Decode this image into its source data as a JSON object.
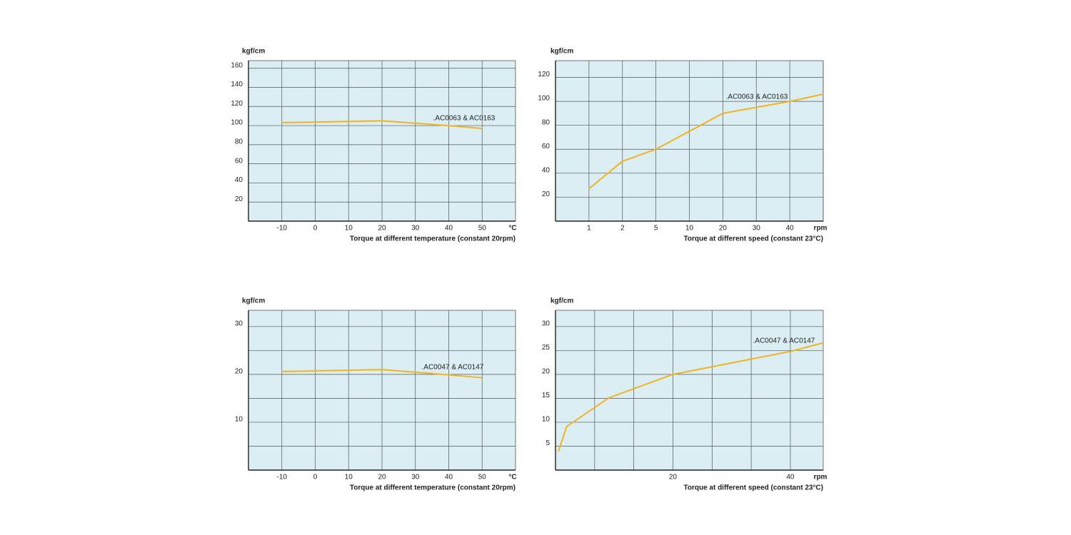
{
  "chart_data": [
    {
      "type": "line",
      "title": "Torque at different temperature (constant 20rpm)",
      "y_label": "kgf/cm",
      "x_label": "°C",
      "xlim": [
        -20,
        60
      ],
      "xticks": [
        -10,
        0,
        10,
        20,
        30,
        40,
        50
      ],
      "ylim": [
        0,
        168
      ],
      "yticks": [
        20,
        40,
        60,
        80,
        100,
        120,
        140,
        160
      ],
      "series": [
        {
          "name": ".AC0063 & AC0163",
          "color": "#f0b323",
          "x": [
            -10,
            20,
            40,
            50
          ],
          "values": [
            103,
            105,
            100,
            97
          ]
        }
      ],
      "background": "#dbeef3",
      "grid": true
    },
    {
      "type": "line",
      "title": "Torque at different speed (constant 23°C)",
      "y_label": "kgf/cm",
      "x_label": "rpm",
      "categories": [
        "1",
        "2",
        "5",
        "10",
        "20",
        "30",
        "40",
        null
      ],
      "ylim": [
        0,
        134
      ],
      "yticks": [
        20,
        40,
        60,
        80,
        100,
        120
      ],
      "series": [
        {
          "name": ".AC0063 & AC0163",
          "color": "#f0b323",
          "values": [
            27,
            50,
            60,
            75,
            90,
            95,
            100,
            106
          ]
        }
      ],
      "background": "#dbeef3",
      "grid": true
    },
    {
      "type": "line",
      "title": "Torque at different temperature (constant 20rpm)",
      "y_label": "kgf/cm",
      "x_label": "°C",
      "xlim": [
        -20,
        60
      ],
      "xticks": [
        -10,
        0,
        10,
        20,
        30,
        40,
        50
      ],
      "ylim": [
        0,
        33.4
      ],
      "yticks": [
        10,
        20,
        30
      ],
      "ygrid": [
        5,
        10,
        15,
        20,
        25,
        30
      ],
      "series": [
        {
          "name": ".AC0047 & AC0147",
          "color": "#f0b323",
          "x": [
            -10,
            20,
            40,
            50
          ],
          "values": [
            20.6,
            21,
            19.9,
            19.3
          ]
        }
      ],
      "background": "#dbeef3",
      "grid": true
    },
    {
      "type": "line",
      "title": "Torque at different speed (constant 23°C)",
      "y_label": "kgf/cm",
      "x_label": "rpm",
      "xlim": [
        0,
        45.6
      ],
      "xticks": [
        20,
        40
      ],
      "xgrid": [
        6.67,
        13.33,
        20,
        26.67,
        33.33,
        40
      ],
      "ylim": [
        0,
        33.4
      ],
      "yticks": [
        5,
        10,
        15,
        20,
        25,
        30
      ],
      "series": [
        {
          "name": ".AC0047 & AC0147",
          "color": "#f0b323",
          "x": [
            0.5,
            1.9,
            9.1,
            20,
            40,
            45.6
          ],
          "values": [
            3.9,
            9.1,
            15.1,
            20,
            24.8,
            26.6
          ]
        }
      ],
      "background": "#dbeef3",
      "grid": true
    }
  ]
}
